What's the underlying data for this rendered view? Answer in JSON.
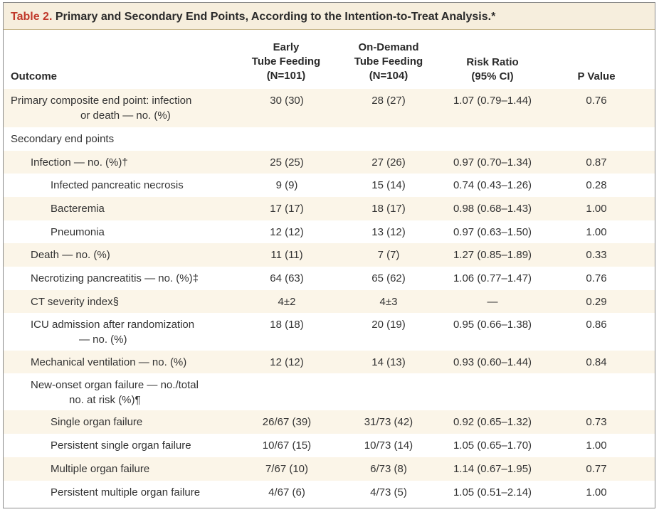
{
  "table": {
    "label": "Table 2.",
    "title": " Primary and Secondary End Points, According to the Intention-to-Treat Analysis.*",
    "headers": {
      "outcome": "Outcome",
      "early": [
        "Early",
        "Tube Feeding",
        "(N=101)"
      ],
      "ondemand": [
        "On-Demand",
        "Tube Feeding",
        "(N=104)"
      ],
      "rr": [
        "Risk Ratio",
        "(95% CI)"
      ],
      "p": "P Value"
    },
    "rows": [
      {
        "outcome": [
          "Primary composite end point: infection",
          "or death — no. (%)"
        ],
        "early": "30 (30)",
        "ondemand": "28 (27)",
        "rr": "1.07 (0.79–1.44)",
        "p": "0.76"
      },
      {
        "outcome": [
          "Secondary end points"
        ],
        "early": "",
        "ondemand": "",
        "rr": "",
        "p": ""
      },
      {
        "outcome": [
          "Infection — no. (%)†"
        ],
        "early": "25 (25)",
        "ondemand": "27 (26)",
        "rr": "0.97 (0.70–1.34)",
        "p": "0.87"
      },
      {
        "outcome": [
          "Infected pancreatic necrosis"
        ],
        "early": "9 (9)",
        "ondemand": "15 (14)",
        "rr": "0.74 (0.43–1.26)",
        "p": "0.28"
      },
      {
        "outcome": [
          "Bacteremia"
        ],
        "early": "17 (17)",
        "ondemand": "18 (17)",
        "rr": "0.98 (0.68–1.43)",
        "p": "1.00"
      },
      {
        "outcome": [
          "Pneumonia"
        ],
        "early": "12 (12)",
        "ondemand": "13 (12)",
        "rr": "0.97 (0.63–1.50)",
        "p": "1.00"
      },
      {
        "outcome": [
          "Death — no. (%)"
        ],
        "early": "11 (11)",
        "ondemand": "7 (7)",
        "rr": "1.27 (0.85–1.89)",
        "p": "0.33"
      },
      {
        "outcome": [
          "Necrotizing pancreatitis — no. (%)‡"
        ],
        "early": "64 (63)",
        "ondemand": "65 (62)",
        "rr": "1.06 (0.77–1.47)",
        "p": "0.76"
      },
      {
        "outcome": [
          "CT severity index§"
        ],
        "early": "4±2",
        "ondemand": "4±3",
        "rr": "—",
        "p": "0.29"
      },
      {
        "outcome": [
          "ICU admission after randomization",
          "— no. (%)"
        ],
        "early": "18 (18)",
        "ondemand": "20 (19)",
        "rr": "0.95 (0.66–1.38)",
        "p": "0.86"
      },
      {
        "outcome": [
          "Mechanical ventilation — no. (%)"
        ],
        "early": "12 (12)",
        "ondemand": "14 (13)",
        "rr": "0.93 (0.60–1.44)",
        "p": "0.84"
      },
      {
        "outcome": [
          "New-onset organ failure — no./total",
          "no. at risk (%)¶"
        ],
        "early": "",
        "ondemand": "",
        "rr": "",
        "p": ""
      },
      {
        "outcome": [
          "Single organ failure"
        ],
        "early": "26/67 (39)",
        "ondemand": "31/73 (42)",
        "rr": "0.92 (0.65–1.32)",
        "p": "0.73"
      },
      {
        "outcome": [
          "Persistent single organ failure"
        ],
        "early": "10/67 (15)",
        "ondemand": "10/73 (14)",
        "rr": "1.05 (0.65–1.70)",
        "p": "1.00"
      },
      {
        "outcome": [
          "Multiple organ failure"
        ],
        "early": "7/67 (10)",
        "ondemand": "6/73 (8)",
        "rr": "1.14 (0.67–1.95)",
        "p": "0.77"
      },
      {
        "outcome": [
          "Persistent multiple organ failure"
        ],
        "early": "4/67 (6)",
        "ondemand": "4/73 (5)",
        "rr": "1.05 (0.51–2.14)",
        "p": "1.00"
      }
    ]
  }
}
